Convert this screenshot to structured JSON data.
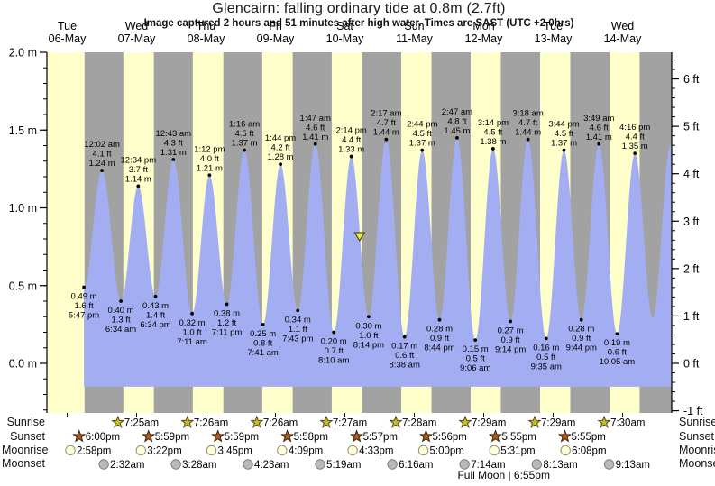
{
  "rows": {
    "sunrise": "Sunrise",
    "sunset": "Sunset",
    "moonrise": "Moonrise",
    "moonset": "Moonset"
  },
  "colors": {
    "background": "#ffffff",
    "day_band": "#ffffcc",
    "night_band": "#a2a2a2",
    "tide_fill": "#a3aef2",
    "day_label_red": "#ee1111",
    "text": "#000000",
    "now_marker_yellow": "#f2ea3c",
    "sunrise_star": "#c4bc30",
    "sunset_star": "#ad5a26",
    "moonrise_circle": "#ffffd9",
    "moonset_circle": "#b9b9b9"
  },
  "chart_data": {
    "type": "area",
    "title": "Glencairn: falling  ordinary tide at 0.8m (2.7ft)",
    "subtitle": "Image captured 2 hours and 51 minutes after high water. Times are SAST (UTC +2.0hrs)",
    "xlabel": "",
    "ylabel_left": "m",
    "ylabel_right": "ft",
    "ylim_m": [
      -0.32,
      2.0
    ],
    "grid": false,
    "days": [
      {
        "dow": "Tue",
        "date": "06-May"
      },
      {
        "dow": "Wed",
        "date": "07-May"
      },
      {
        "dow": "Thu",
        "date": "08-May"
      },
      {
        "dow": "Fri",
        "date": "09-May"
      },
      {
        "dow": "Sat",
        "date": "10-May"
      },
      {
        "dow": "Sun",
        "date": "11-May"
      },
      {
        "dow": "Mon",
        "date": "12-May"
      },
      {
        "dow": "Tue",
        "date": "13-May"
      },
      {
        "dow": "Wed",
        "date": "14-May"
      }
    ],
    "y_axis_left": {
      "labels": [
        "2.0 m",
        "1.5 m",
        "1.0 m",
        "0.5 m",
        "0.0 m"
      ]
    },
    "y_axis_right": {
      "labels": [
        "6 ft",
        "5 ft",
        "4 ft",
        "3 ft",
        "2 ft",
        "1 ft",
        "0 ft",
        "-1 ft"
      ]
    },
    "tides": [
      {
        "t": 17.783,
        "type": "low",
        "m": 0.49,
        "lines": [
          "0.49 m",
          "1.6 ft",
          "5:47 pm"
        ]
      },
      {
        "t": 24.033,
        "type": "high",
        "m": 1.24,
        "lines": [
          "12:02 am",
          "4.1 ft",
          "1.24 m"
        ]
      },
      {
        "t": 30.567,
        "type": "low",
        "m": 0.4,
        "lines": [
          "0.40 m",
          "1.3 ft",
          "6:34 am"
        ]
      },
      {
        "t": 36.567,
        "type": "high",
        "m": 1.14,
        "lines": [
          "12:34 pm",
          "3.7 ft",
          "1.14 m"
        ]
      },
      {
        "t": 42.567,
        "type": "low",
        "m": 0.43,
        "lines": [
          "0.43 m",
          "1.4 ft",
          "6:34 pm"
        ]
      },
      {
        "t": 48.717,
        "type": "high",
        "m": 1.31,
        "lines": [
          "12:43 am",
          "4.3 ft",
          "1.31 m"
        ]
      },
      {
        "t": 55.183,
        "type": "low",
        "m": 0.32,
        "lines": [
          "0.32 m",
          "1.0 ft",
          "7:11 am"
        ]
      },
      {
        "t": 61.2,
        "type": "high",
        "m": 1.21,
        "lines": [
          "1:12 pm",
          "4.0 ft",
          "1.21 m"
        ]
      },
      {
        "t": 67.183,
        "type": "low",
        "m": 0.38,
        "lines": [
          "0.38 m",
          "1.2 ft",
          "7:11 pm"
        ]
      },
      {
        "t": 73.267,
        "type": "high",
        "m": 1.37,
        "lines": [
          "1:16 am",
          "4.5 ft",
          "1.37 m"
        ]
      },
      {
        "t": 79.683,
        "type": "low",
        "m": 0.25,
        "lines": [
          "0.25 m",
          "0.8 ft",
          "7:41 am"
        ]
      },
      {
        "t": 85.733,
        "type": "high",
        "m": 1.28,
        "lines": [
          "1:44 pm",
          "4.2 ft",
          "1.28 m"
        ]
      },
      {
        "t": 91.717,
        "type": "low",
        "m": 0.34,
        "lines": [
          "0.34 m",
          "1.1 ft",
          "7:43 pm"
        ]
      },
      {
        "t": 97.783,
        "type": "high",
        "m": 1.41,
        "lines": [
          "1:47 am",
          "4.6 ft",
          "1.41 m"
        ]
      },
      {
        "t": 104.167,
        "type": "low",
        "m": 0.2,
        "lines": [
          "0.20 m",
          "0.7 ft",
          "8:10 am"
        ]
      },
      {
        "t": 110.233,
        "type": "high",
        "m": 1.33,
        "lines": [
          "2:14 pm",
          "4.4 ft",
          "1.33 m"
        ]
      },
      {
        "t": 116.233,
        "type": "low",
        "m": 0.3,
        "lines": [
          "0.30 m",
          "1.0 ft",
          "8:14 pm"
        ]
      },
      {
        "t": 122.283,
        "type": "high",
        "m": 1.44,
        "lines": [
          "2:17 am",
          "4.7 ft",
          "1.44 m"
        ]
      },
      {
        "t": 128.633,
        "type": "low",
        "m": 0.17,
        "lines": [
          "0.17 m",
          "0.6 ft",
          "8:38 am"
        ]
      },
      {
        "t": 134.733,
        "type": "high",
        "m": 1.37,
        "lines": [
          "2:44 pm",
          "4.5 ft",
          "1.37 m"
        ]
      },
      {
        "t": 140.733,
        "type": "low",
        "m": 0.28,
        "lines": [
          "0.28 m",
          "0.9 ft",
          "8:44 pm"
        ]
      },
      {
        "t": 146.783,
        "type": "high",
        "m": 1.45,
        "lines": [
          "2:47 am",
          "4.8 ft",
          "1.45 m"
        ]
      },
      {
        "t": 153.1,
        "type": "low",
        "m": 0.15,
        "lines": [
          "0.15 m",
          "0.5 ft",
          "9:06 am"
        ]
      },
      {
        "t": 159.233,
        "type": "high",
        "m": 1.38,
        "lines": [
          "3:14 pm",
          "4.5 ft",
          "1.38 m"
        ]
      },
      {
        "t": 165.233,
        "type": "low",
        "m": 0.27,
        "lines": [
          "0.27 m",
          "0.9 ft",
          "9:14 pm"
        ]
      },
      {
        "t": 171.3,
        "type": "high",
        "m": 1.44,
        "lines": [
          "3:18 am",
          "4.7 ft",
          "1.44 m"
        ]
      },
      {
        "t": 177.583,
        "type": "low",
        "m": 0.16,
        "lines": [
          "0.16 m",
          "0.5 ft",
          "9:35 am"
        ]
      },
      {
        "t": 183.733,
        "type": "high",
        "m": 1.37,
        "lines": [
          "3:44 pm",
          "4.5 ft",
          "1.37 m"
        ]
      },
      {
        "t": 189.733,
        "type": "low",
        "m": 0.28,
        "lines": [
          "0.28 m",
          "0.9 ft",
          "9:44 pm"
        ]
      },
      {
        "t": 195.817,
        "type": "high",
        "m": 1.41,
        "lines": [
          "3:49 am",
          "4.6 ft",
          "1.41 m"
        ]
      },
      {
        "t": 202.083,
        "type": "low",
        "m": 0.19,
        "lines": [
          "0.19 m",
          "0.6 ft",
          "10:05 am"
        ]
      },
      {
        "t": 208.267,
        "type": "high",
        "m": 1.35,
        "lines": [
          "4:16 pm",
          "4.4 ft",
          "1.35 m"
        ]
      }
    ],
    "curve_tail": [
      {
        "t": 214.4,
        "m": 0.29
      },
      {
        "t": 220.6,
        "m": 1.4
      }
    ],
    "now_marker": {
      "t": 113.08,
      "m": 0.8
    },
    "sunrise": [
      {
        "t": 31.417,
        "label": "7:25am"
      },
      {
        "t": 55.433,
        "label": "7:26am"
      },
      {
        "t": 79.433,
        "label": "7:26am"
      },
      {
        "t": 103.45,
        "label": "7:27am"
      },
      {
        "t": 127.467,
        "label": "7:28am"
      },
      {
        "t": 151.483,
        "label": "7:29am"
      },
      {
        "t": 175.483,
        "label": "7:29am"
      },
      {
        "t": 199.5,
        "label": "7:30am"
      }
    ],
    "sunset": [
      {
        "t": 18.0,
        "label": "6:00pm"
      },
      {
        "t": 41.983,
        "label": "5:59pm"
      },
      {
        "t": 65.983,
        "label": "5:59pm"
      },
      {
        "t": 89.967,
        "label": "5:58pm"
      },
      {
        "t": 113.95,
        "label": "5:57pm"
      },
      {
        "t": 137.933,
        "label": "5:56pm"
      },
      {
        "t": 161.917,
        "label": "5:55pm"
      },
      {
        "t": 185.917,
        "label": "5:55pm"
      }
    ],
    "moonrise": [
      {
        "t": 14.967,
        "label": "2:58pm"
      },
      {
        "t": 39.367,
        "label": "3:22pm"
      },
      {
        "t": 63.75,
        "label": "3:45pm"
      },
      {
        "t": 88.15,
        "label": "4:09pm"
      },
      {
        "t": 112.55,
        "label": "4:33pm"
      },
      {
        "t": 137.0,
        "label": "5:00pm"
      },
      {
        "t": 161.517,
        "label": "5:31pm"
      },
      {
        "t": 186.133,
        "label": "6:08pm"
      }
    ],
    "moonset": [
      {
        "t": 26.533,
        "label": "2:32am"
      },
      {
        "t": 51.467,
        "label": "3:28am"
      },
      {
        "t": 76.383,
        "label": "4:23am"
      },
      {
        "t": 101.317,
        "label": "5:19am"
      },
      {
        "t": 126.267,
        "label": "6:16am"
      },
      {
        "t": 151.233,
        "label": "7:14am"
      },
      {
        "t": 176.217,
        "label": "8:13am"
      },
      {
        "t": 201.217,
        "label": "9:13am"
      }
    ],
    "moon_phase": {
      "t": 162.92,
      "label": "Full Moon | 6:55pm"
    }
  }
}
